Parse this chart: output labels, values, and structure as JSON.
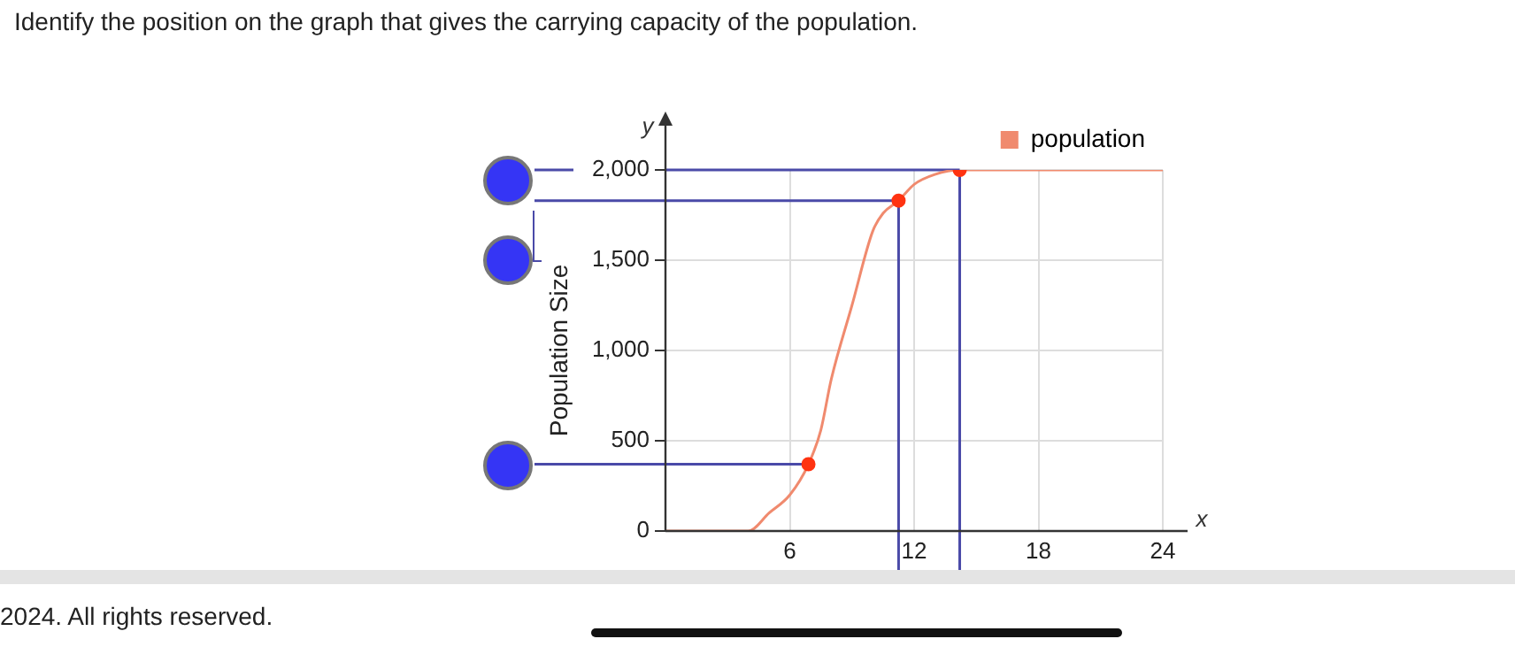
{
  "chart_data": {
    "type": "line",
    "title": "Identify the position on the graph that gives the carrying capacity of the population.",
    "xlabel": "x",
    "ylabel": "Population Size",
    "annotations": [
      "y",
      "2024. All rights reserved."
    ],
    "x": [
      0,
      3,
      4,
      5,
      6,
      6.9,
      7.5,
      8,
      9,
      10,
      10.5,
      11.25,
      12,
      13,
      14.2,
      24
    ],
    "series": [
      {
        "name": "population",
        "color": "#f08a6e",
        "values": [
          0,
          0,
          0,
          100,
          200,
          370,
          560,
          840,
          1250,
          1660,
          1760,
          1830,
          1920,
          1975,
          2000,
          2000
        ],
        "marker": "none"
      },
      {
        "type": "scatter",
        "color": "#ff3311",
        "x": [
          6.9,
          11.25,
          14.2
        ],
        "values": [
          370,
          1830,
          2000
        ],
        "marker": "circle"
      }
    ],
    "xlim": [
      0,
      24
    ],
    "xticks": [
      6,
      12,
      18,
      24
    ],
    "ylim": [
      0,
      2000
    ],
    "yticks": [
      0,
      {
        "value": 500,
        "label": "500"
      },
      {
        "value": 1000,
        "label": "1,000"
      },
      {
        "value": 1500,
        "label": "1,500"
      },
      {
        "value": 2000,
        "label": "2,000"
      }
    ],
    "ref_lines": [
      {
        "axis": "y",
        "value": 2000,
        "color": "#4a4aa8"
      },
      {
        "axis": "y",
        "value": 1830,
        "color": "#4a4aa8"
      },
      {
        "axis": "y",
        "value": 370,
        "color": "#4a4aa8"
      },
      {
        "axis": "x",
        "value": 11.25,
        "color": "#4a4aa8"
      },
      {
        "axis": "x",
        "value": 14.2,
        "color": "#4a4aa8"
      }
    ],
    "grid": true,
    "legend": "top right"
  }
}
